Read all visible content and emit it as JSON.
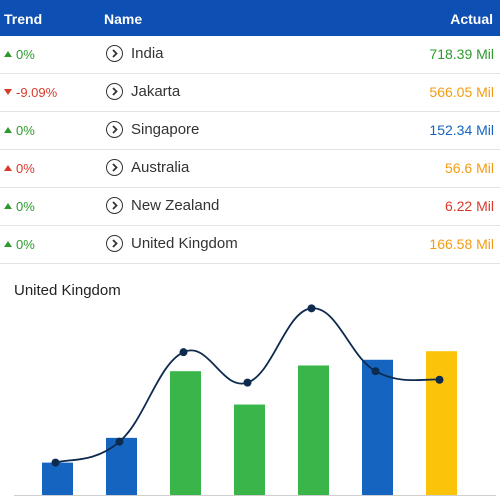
{
  "header": {
    "trend": "Trend",
    "name": "Name",
    "actual": "Actual"
  },
  "colors": {
    "header_bg": "#0e4fb3",
    "green": "#2c9b2c",
    "red": "#d7392b",
    "orange": "#f39c12",
    "blue": "#1565c0",
    "bar_yellow": "#fcc30b"
  },
  "rows": [
    {
      "trend": "0%",
      "trend_dir": "up",
      "trend_color": "#2c9b2c",
      "name": "India",
      "actual": "718.39 Mil",
      "actual_color": "#2c9b2c"
    },
    {
      "trend": "-9.09%",
      "trend_dir": "down",
      "trend_color": "#d7392b",
      "name": "Jakarta",
      "actual": "566.05 Mil",
      "actual_color": "#f39c12"
    },
    {
      "trend": "0%",
      "trend_dir": "up",
      "trend_color": "#2c9b2c",
      "name": "Singapore",
      "actual": "152.34 Mil",
      "actual_color": "#1565c0"
    },
    {
      "trend": "0%",
      "trend_dir": "up",
      "trend_color": "#d7392b",
      "name": "Australia",
      "actual": "56.6 Mil",
      "actual_color": "#f39c12"
    },
    {
      "trend": "0%",
      "trend_dir": "up",
      "trend_color": "#2c9b2c",
      "name": "New Zealand",
      "actual": "6.22 Mil",
      "actual_color": "#d7392b"
    },
    {
      "trend": "0%",
      "trend_dir": "up",
      "trend_color": "#2c9b2c",
      "name": "United Kingdom",
      "actual": "166.58 Mil",
      "actual_color": "#f39c12"
    }
  ],
  "chart_data": {
    "type": "bar",
    "title": "United Kingdom",
    "categories": [
      "",
      "",
      "",
      "",
      "",
      "",
      ""
    ],
    "values": [
      34,
      60,
      130,
      95,
      136,
      142,
      151
    ],
    "bar_colors": [
      "#1565c0",
      "#1565c0",
      "#3ab54a",
      "#3ab54a",
      "#3ab54a",
      "#1565c0",
      "#fcc30b"
    ],
    "line_values": [
      34,
      56,
      150,
      118,
      196,
      130,
      121
    ],
    "ylim": [
      0,
      210
    ],
    "grid": false,
    "legend": "none"
  }
}
